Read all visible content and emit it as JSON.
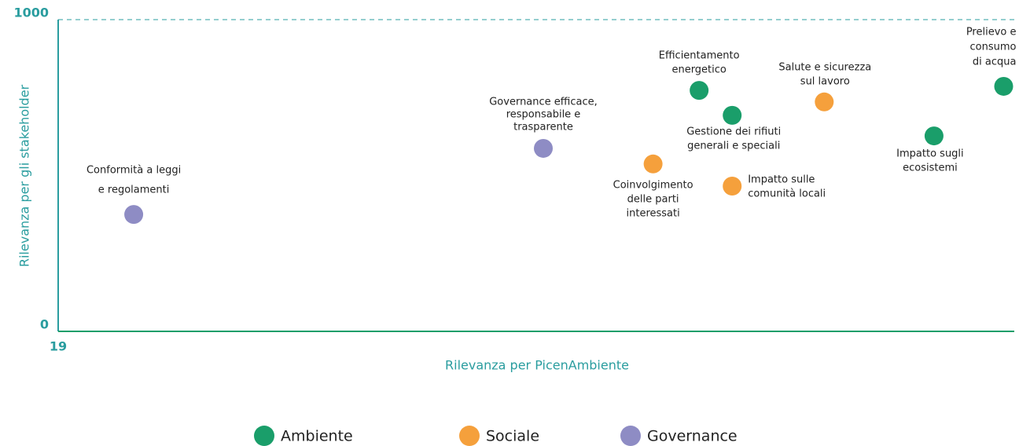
{
  "chart_data": {
    "type": "scatter",
    "xlabel": "Rilevanza per PicenAmbiente",
    "ylabel": "Rilevanza per gli stakeholder",
    "xlim": [
      19,
      100
    ],
    "ylim": [
      0,
      1000
    ],
    "xticks": [
      19
    ],
    "yticks": [
      0,
      1000
    ],
    "grid": true,
    "legend": "bottom",
    "series": [
      {
        "name": "Ambiente",
        "color": "#1a9e6a",
        "x": [
          73.3,
          76.1,
          93.2,
          99.1
        ],
        "values": [
          773,
          693,
          627,
          786
        ],
        "labels": [
          [
            "Efficientamento",
            "energetico"
          ],
          [
            "Gestione dei rifiuti",
            "generali e speciali"
          ],
          [
            "Impatto sugli",
            "ecosistemi"
          ],
          [
            "Prelievo e",
            "consumo",
            "di acqua"
          ]
        ]
      },
      {
        "name": "Sociale",
        "color": "#f5a03c",
        "x": [
          83.9,
          69.4,
          76.1
        ],
        "values": [
          736,
          537,
          466
        ],
        "labels": [
          [
            "Salute e sicurezza",
            "sul lavoro"
          ],
          [
            "Coinvolgimento",
            "delle parti",
            "interessati"
          ],
          [
            "Impatto sulle",
            "comunità locali"
          ]
        ]
      },
      {
        "name": "Governance",
        "color": "#8e8cc4",
        "x": [
          60.1,
          25.4
        ],
        "values": [
          587,
          375
        ],
        "labels": [
          [
            "Governance efficace,",
            "responsabile e",
            "trasparente"
          ],
          [
            "Conformità a leggi",
            "e regolamenti"
          ]
        ]
      }
    ]
  }
}
